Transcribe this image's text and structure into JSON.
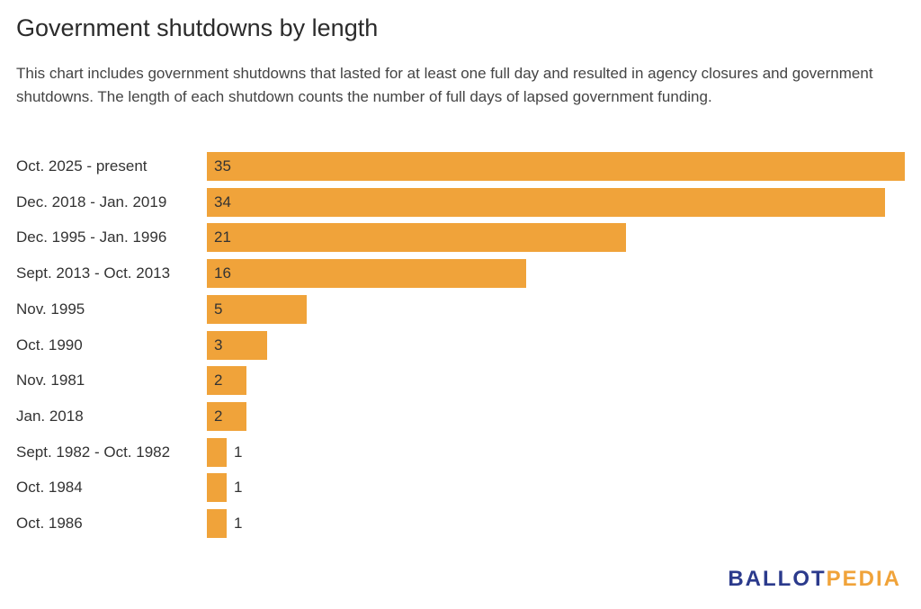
{
  "header": {
    "title": "Government shutdowns by length",
    "subtitle": "This chart includes government shutdowns that lasted for at least one full day and resulted in agency closures and government shutdowns. The length of each shutdown counts the number of full days of lapsed government funding."
  },
  "logo": {
    "part1": "BALLOT",
    "part2": "PEDIA"
  },
  "colors": {
    "bar": "#f0a33a",
    "logo_blue": "#2b3a8c",
    "logo_orange": "#f0a33a"
  },
  "chart_data": {
    "type": "bar",
    "orientation": "horizontal",
    "title": "Government shutdowns by length",
    "categories": [
      "Oct. 2025 - present",
      "Dec. 2018 - Jan. 2019",
      "Dec. 1995 - Jan. 1996",
      "Sept. 2013 - Oct. 2013",
      "Nov. 1995",
      "Oct. 1990",
      "Nov. 1981",
      "Jan. 2018",
      "Sept. 1982 - Oct. 1982",
      "Oct. 1984",
      "Oct. 1986"
    ],
    "values": [
      35,
      34,
      21,
      16,
      5,
      3,
      2,
      2,
      1,
      1,
      1
    ],
    "xlim": [
      0,
      35
    ],
    "grid": false,
    "legend": "none"
  }
}
